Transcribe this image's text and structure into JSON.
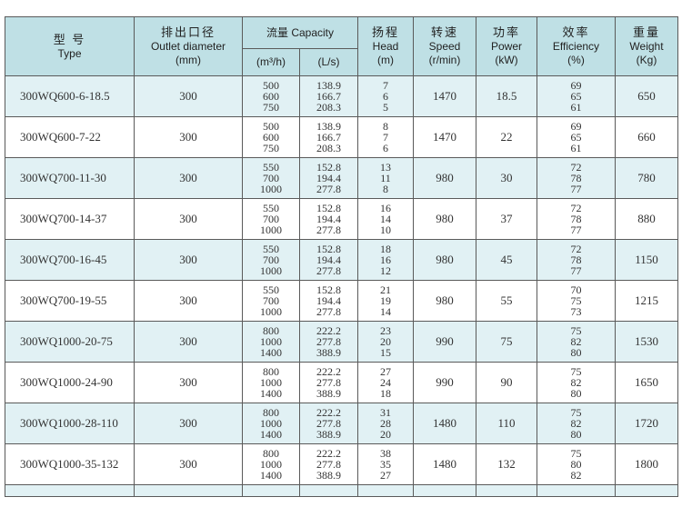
{
  "header": {
    "type_cn": "型 号",
    "type_en": "Type",
    "outlet_cn": "排出口径",
    "outlet_en": "Outlet diameter",
    "outlet_unit": "(mm)",
    "capacity": "流量 Capacity",
    "cap_unit1": "(m³/h)",
    "cap_unit2": "(L/s)",
    "head_cn": "扬程",
    "head_en": "Head",
    "head_unit": "(m)",
    "speed_cn": "转速",
    "speed_en": "Speed",
    "speed_unit": "(r/min)",
    "power_cn": "功率",
    "power_en": "Power",
    "power_unit": "(kW)",
    "eff_cn": "效率",
    "eff_en": "Efficiency",
    "eff_unit": "(%)",
    "weight_cn": "重量",
    "weight_en": "Weight",
    "weight_unit": "(Kg)"
  },
  "rows": [
    {
      "type": "300WQ600-6-18.5",
      "outlet": "300",
      "m3h": [
        "500",
        "600",
        "750"
      ],
      "ls": [
        "138.9",
        "166.7",
        "208.3"
      ],
      "head": [
        "7",
        "6",
        "5"
      ],
      "speed": "1470",
      "power": "18.5",
      "eff": [
        "69",
        "65",
        "61"
      ],
      "weight": "650"
    },
    {
      "type": "300WQ600-7-22",
      "outlet": "300",
      "m3h": [
        "500",
        "600",
        "750"
      ],
      "ls": [
        "138.9",
        "166.7",
        "208.3"
      ],
      "head": [
        "8",
        "7",
        "6"
      ],
      "speed": "1470",
      "power": "22",
      "eff": [
        "69",
        "65",
        "61"
      ],
      "weight": "660"
    },
    {
      "type": "300WQ700-11-30",
      "outlet": "300",
      "m3h": [
        "550",
        "700",
        "1000"
      ],
      "ls": [
        "152.8",
        "194.4",
        "277.8"
      ],
      "head": [
        "13",
        "11",
        "8"
      ],
      "speed": "980",
      "power": "30",
      "eff": [
        "72",
        "78",
        "77"
      ],
      "weight": "780"
    },
    {
      "type": "300WQ700-14-37",
      "outlet": "300",
      "m3h": [
        "550",
        "700",
        "1000"
      ],
      "ls": [
        "152.8",
        "194.4",
        "277.8"
      ],
      "head": [
        "16",
        "14",
        "10"
      ],
      "speed": "980",
      "power": "37",
      "eff": [
        "72",
        "78",
        "77"
      ],
      "weight": "880"
    },
    {
      "type": "300WQ700-16-45",
      "outlet": "300",
      "m3h": [
        "550",
        "700",
        "1000"
      ],
      "ls": [
        "152.8",
        "194.4",
        "277.8"
      ],
      "head": [
        "18",
        "16",
        "12"
      ],
      "speed": "980",
      "power": "45",
      "eff": [
        "72",
        "78",
        "77"
      ],
      "weight": "1150"
    },
    {
      "type": "300WQ700-19-55",
      "outlet": "300",
      "m3h": [
        "550",
        "700",
        "1000"
      ],
      "ls": [
        "152.8",
        "194.4",
        "277.8"
      ],
      "head": [
        "21",
        "19",
        "14"
      ],
      "speed": "980",
      "power": "55",
      "eff": [
        "70",
        "75",
        "73"
      ],
      "weight": "1215"
    },
    {
      "type": "300WQ1000-20-75",
      "outlet": "300",
      "m3h": [
        "800",
        "1000",
        "1400"
      ],
      "ls": [
        "222.2",
        "277.8",
        "388.9"
      ],
      "head": [
        "23",
        "20",
        "15"
      ],
      "speed": "990",
      "power": "75",
      "eff": [
        "75",
        "82",
        "80"
      ],
      "weight": "1530"
    },
    {
      "type": "300WQ1000-24-90",
      "outlet": "300",
      "m3h": [
        "800",
        "1000",
        "1400"
      ],
      "ls": [
        "222.2",
        "277.8",
        "388.9"
      ],
      "head": [
        "27",
        "24",
        "18"
      ],
      "speed": "990",
      "power": "90",
      "eff": [
        "75",
        "82",
        "80"
      ],
      "weight": "1650"
    },
    {
      "type": "300WQ1000-28-110",
      "outlet": "300",
      "m3h": [
        "800",
        "1000",
        "1400"
      ],
      "ls": [
        "222.2",
        "277.8",
        "388.9"
      ],
      "head": [
        "31",
        "28",
        "20"
      ],
      "speed": "1480",
      "power": "110",
      "eff": [
        "75",
        "82",
        "80"
      ],
      "weight": "1720"
    },
    {
      "type": "300WQ1000-35-132",
      "outlet": "300",
      "m3h": [
        "800",
        "1000",
        "1400"
      ],
      "ls": [
        "222.2",
        "277.8",
        "388.9"
      ],
      "head": [
        "38",
        "35",
        "27"
      ],
      "speed": "1480",
      "power": "132",
      "eff": [
        "75",
        "80",
        "82"
      ],
      "weight": "1800"
    }
  ],
  "colors": {
    "header_bg": "#bfe0e5",
    "alt_row_bg": "#e1f1f4",
    "border": "#5a5a5a"
  }
}
